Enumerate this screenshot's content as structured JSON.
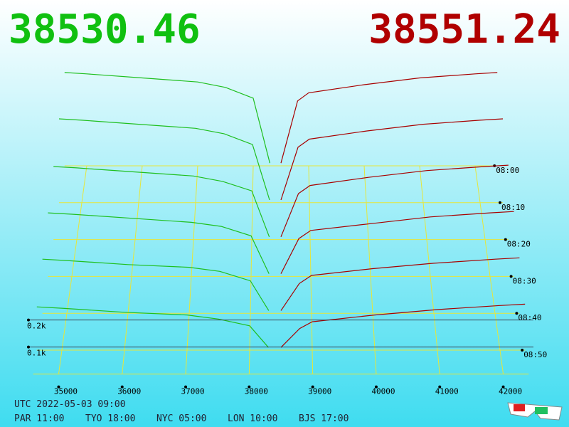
{
  "chart_data": {
    "type": "depth3d",
    "bid_price": 38530.46,
    "ask_price": 38551.24,
    "bid_color": "#1fbf1f",
    "ask_color": "#a80000",
    "grid_color": "#e6e63a",
    "xlim": [
      34600,
      42400
    ],
    "xticks": [
      35000,
      36000,
      37000,
      38000,
      39000,
      40000,
      41000,
      42000
    ],
    "bid_prices": [
      34600,
      35000,
      36000,
      37000,
      37500,
      38000,
      38300
    ],
    "ask_prices": [
      38500,
      38800,
      39000,
      40000,
      41000,
      42000,
      42400
    ],
    "layers": [
      {
        "time": "08:00",
        "bids": [
          345,
          340,
          325,
          310,
          290,
          250,
          10
        ],
        "asks": [
          10,
          240,
          270,
          300,
          325,
          340,
          345
        ]
      },
      {
        "time": "08:10",
        "bids": [
          310,
          305,
          290,
          275,
          255,
          215,
          10
        ],
        "asks": [
          10,
          205,
          235,
          265,
          290,
          305,
          310
        ]
      },
      {
        "time": "08:20",
        "bids": [
          270,
          265,
          250,
          235,
          215,
          180,
          10
        ],
        "asks": [
          10,
          170,
          200,
          230,
          255,
          270,
          275
        ]
      },
      {
        "time": "08:30",
        "bids": [
          235,
          230,
          215,
          200,
          185,
          150,
          10
        ],
        "asks": [
          10,
          140,
          170,
          195,
          220,
          235,
          240
        ]
      },
      {
        "time": "08:40",
        "bids": [
          200,
          195,
          180,
          170,
          155,
          120,
          10
        ],
        "asks": [
          10,
          110,
          140,
          165,
          185,
          200,
          205
        ]
      },
      {
        "time": "08:50",
        "bids": [
          160,
          155,
          140,
          130,
          115,
          90,
          10
        ],
        "asks": [
          10,
          80,
          105,
          130,
          150,
          165,
          170
        ]
      }
    ],
    "volume_ticks": [
      {
        "value": 200,
        "label": "0.2k"
      },
      {
        "value": 100,
        "label": "0.1k"
      }
    ],
    "footer": [
      "UTC 2022-05-03 09:00",
      "PAR 11:00",
      "TYO 18:00",
      "NYC 05:00",
      "LON 10:00",
      "BJS 17:00"
    ]
  }
}
